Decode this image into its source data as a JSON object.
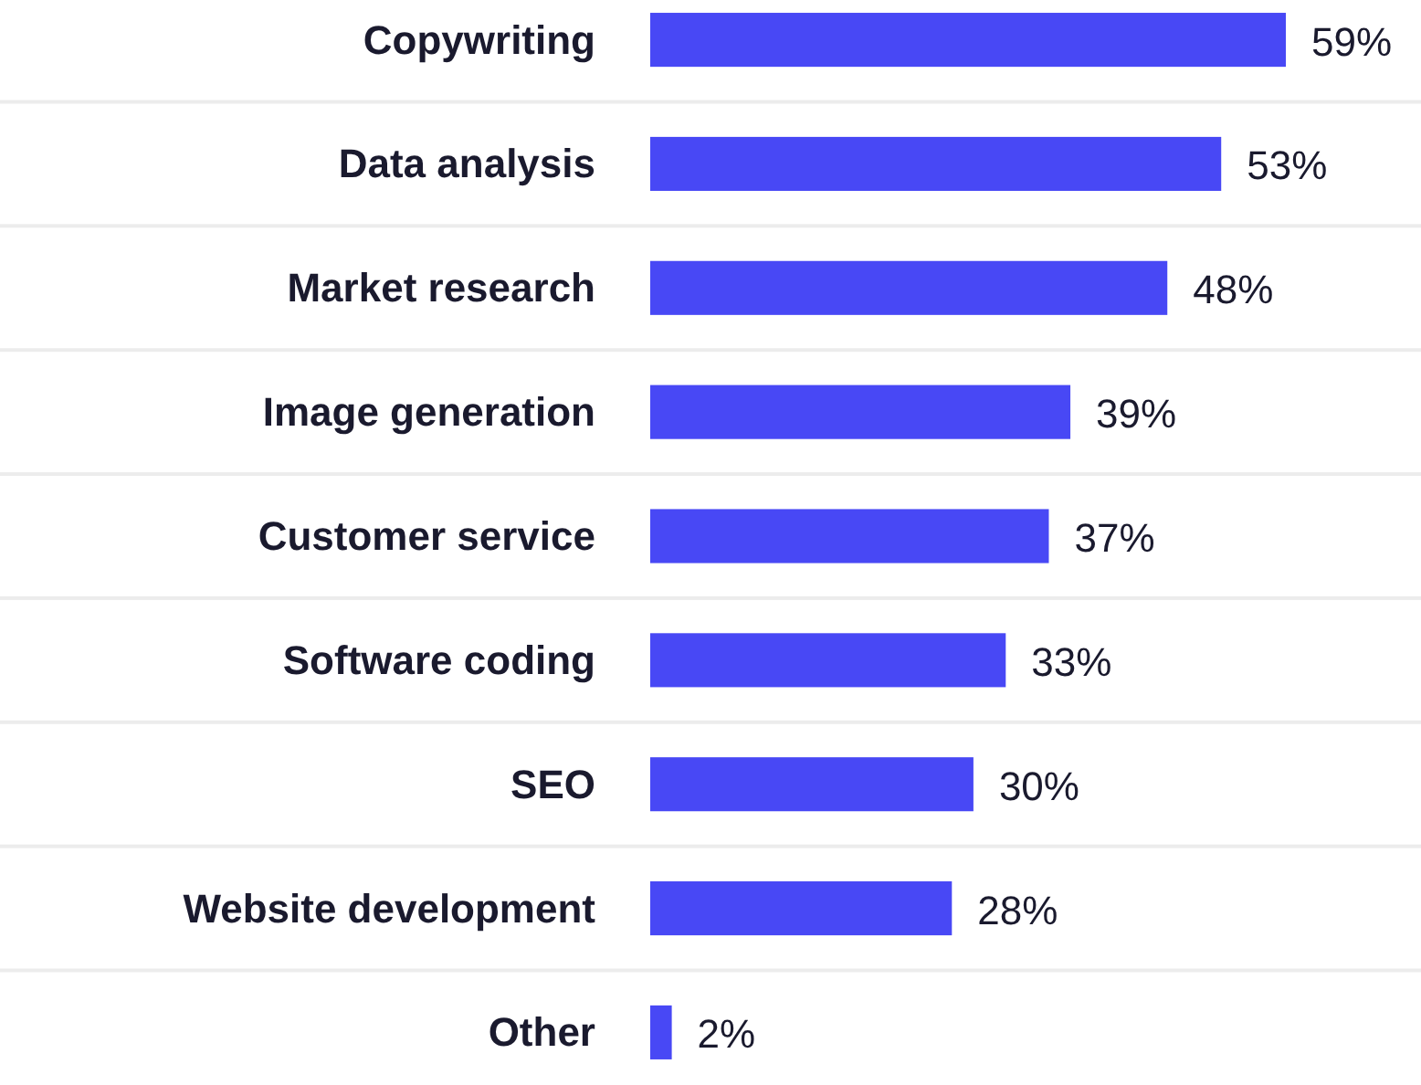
{
  "chart_data": {
    "type": "bar",
    "orientation": "horizontal",
    "relative": false,
    "categories": [
      "Copywriting",
      "Data analysis",
      "Market research",
      "Image generation",
      "Customer service",
      "Software coding",
      "SEO",
      "Website development",
      "Other"
    ],
    "values": [
      59,
      53,
      48,
      39,
      37,
      33,
      30,
      28,
      2
    ],
    "value_labels": [
      "59%",
      "53%",
      "48%",
      "39%",
      "37%",
      "33%",
      "30%",
      "28%",
      "2%"
    ],
    "color": "#4848f5"
  }
}
